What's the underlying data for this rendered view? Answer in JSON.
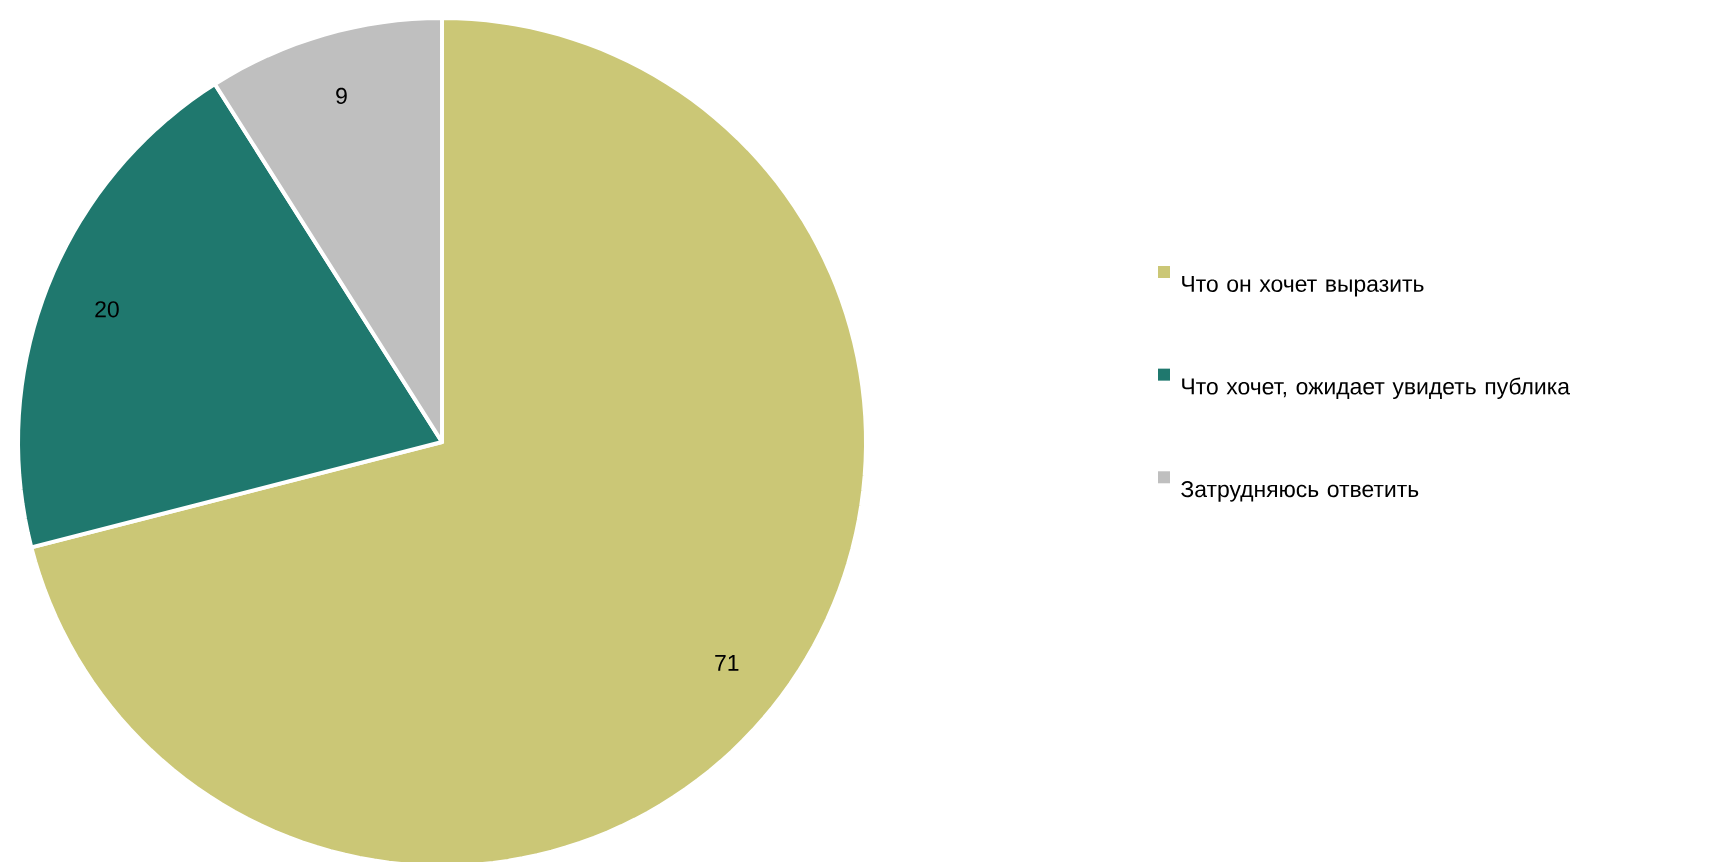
{
  "chart_data": {
    "type": "pie",
    "categories": [
      "Что он хочет выразить",
      "Что хочет, ожидает увидеть публика",
      "Затрудняюсь ответить"
    ],
    "values": [
      71,
      20,
      9
    ],
    "colors": [
      "#cbc776",
      "#1f786e",
      "#bfbfbf"
    ],
    "data_labels": true,
    "legend": "right"
  }
}
